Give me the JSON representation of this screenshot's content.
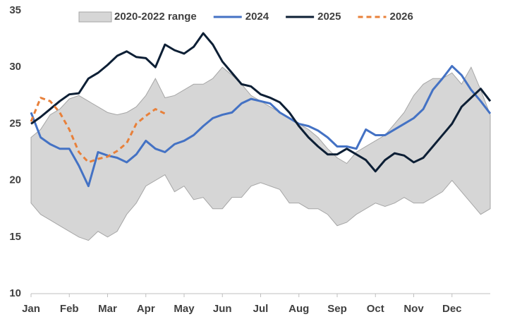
{
  "chart_data": {
    "type": "line",
    "x": [
      0,
      0.25,
      0.5,
      0.75,
      1,
      1.25,
      1.5,
      1.75,
      2,
      2.25,
      2.5,
      2.75,
      3,
      3.25,
      3.5,
      3.75,
      4,
      4.25,
      4.5,
      4.75,
      5,
      5.25,
      5.5,
      5.75,
      6,
      6.25,
      6.5,
      6.75,
      7,
      7.25,
      7.5,
      7.75,
      8,
      8.25,
      8.5,
      8.75,
      9,
      9.25,
      9.5,
      9.75,
      10,
      10.25,
      10.5,
      10.75,
      11,
      11.25,
      11.5,
      11.75,
      12
    ],
    "xlim": [
      0,
      12
    ],
    "xticks": [
      {
        "value": 0,
        "label": "Jan"
      },
      {
        "value": 1,
        "label": "Feb"
      },
      {
        "value": 2,
        "label": "Mar"
      },
      {
        "value": 3,
        "label": "Apr"
      },
      {
        "value": 4,
        "label": "May"
      },
      {
        "value": 5,
        "label": "Jun"
      },
      {
        "value": 6,
        "label": "Jul"
      },
      {
        "value": 7,
        "label": "Aug"
      },
      {
        "value": 8,
        "label": "Sep"
      },
      {
        "value": 9,
        "label": "Oct"
      },
      {
        "value": 10,
        "label": "Nov"
      },
      {
        "value": 11,
        "label": "Dec"
      }
    ],
    "ylim": [
      10,
      35
    ],
    "yticks": [
      10,
      15,
      20,
      25,
      30,
      35
    ],
    "legend": "top",
    "range": {
      "name": "2020-2022 range",
      "color": "#d6d6d6",
      "upper": [
        23.8,
        24.5,
        25.8,
        26.3,
        27.2,
        27.5,
        27,
        26.5,
        26,
        25.8,
        26,
        26.5,
        27.5,
        29,
        27.3,
        27.5,
        28,
        28.5,
        28.5,
        29,
        30,
        29.3,
        28.5,
        27.5,
        27,
        26.5,
        26,
        25.5,
        25,
        24.5,
        23.8,
        22.8,
        22,
        21.5,
        22.5,
        23,
        23.5,
        24,
        25,
        26,
        27.5,
        28.5,
        29,
        29,
        29.5,
        28.5,
        30,
        28,
        25.8
      ],
      "lower": [
        18,
        17,
        16.5,
        16,
        15.5,
        15,
        14.7,
        15.5,
        15,
        15.5,
        17,
        18,
        19.5,
        20,
        20.5,
        19,
        19.5,
        18.3,
        18.5,
        17.5,
        17.5,
        18.5,
        18.5,
        19.5,
        19.8,
        19.5,
        19.2,
        18,
        18,
        17.5,
        17.5,
        17,
        16,
        16.3,
        17,
        17.5,
        18,
        17.7,
        18,
        18.5,
        18,
        18,
        18.5,
        19,
        20,
        19,
        18,
        17,
        17.5
      ]
    },
    "series": [
      {
        "name": "2024",
        "color": "#4472c4",
        "dashed": false,
        "values": [
          26,
          23.8,
          23.2,
          22.8,
          22.8,
          21.3,
          19.5,
          22.5,
          22.2,
          22,
          21.6,
          22.3,
          23.5,
          22.8,
          22.5,
          23.2,
          23.5,
          24,
          24.8,
          25.5,
          25.8,
          26,
          26.8,
          27.2,
          27,
          26.8,
          26,
          25.5,
          25,
          24.8,
          24.4,
          23.8,
          23,
          23,
          22.8,
          24.5,
          24,
          24,
          24.5,
          25,
          25.5,
          26.3,
          28,
          29,
          30.1,
          29.3,
          28,
          27,
          25.9
        ]
      },
      {
        "name": "2025",
        "color": "#0d1f35",
        "dashed": false,
        "values": [
          25,
          25.6,
          26.3,
          27,
          27.6,
          27.7,
          29,
          29.5,
          30.2,
          31,
          31.4,
          30.9,
          30.8,
          30,
          32,
          31.5,
          31.2,
          31.8,
          33,
          32,
          30.5,
          29.5,
          28.5,
          28.3,
          27.6,
          27.3,
          26.9,
          26,
          24.8,
          23.8,
          23,
          22.3,
          22.3,
          22.8,
          22.3,
          21.8,
          20.8,
          21.8,
          22.4,
          22.2,
          21.6,
          22,
          23,
          24,
          25,
          26.5,
          27.3,
          28.1,
          27
        ]
      },
      {
        "name": "2026",
        "color": "#e8803a",
        "dashed": true,
        "values": [
          25.2,
          27.3,
          27,
          26,
          24.5,
          22.5,
          21.6,
          21.9,
          22.1,
          22.6,
          23.3,
          25,
          25.7,
          26.3,
          25.9,
          null,
          null,
          null,
          null,
          null,
          null,
          null,
          null,
          null,
          null,
          null,
          null,
          null,
          null,
          null,
          null,
          null,
          null,
          null,
          null,
          null,
          null,
          null,
          null,
          null,
          null,
          null,
          null,
          null,
          null,
          null,
          null,
          null,
          null
        ]
      }
    ]
  }
}
